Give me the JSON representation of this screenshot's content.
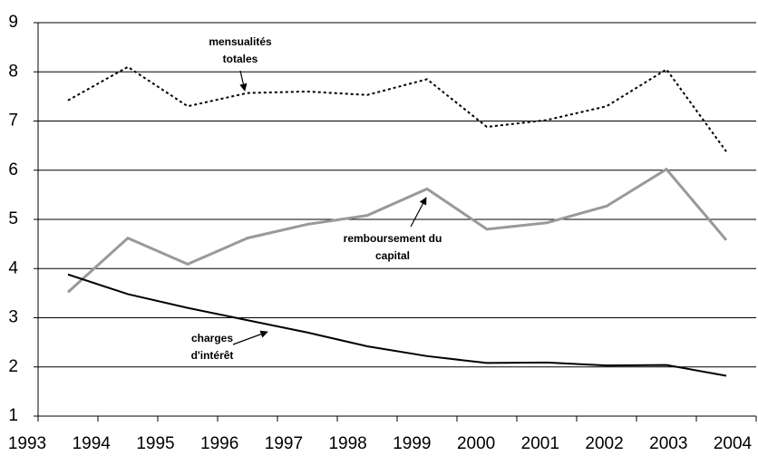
{
  "chart_data": {
    "type": "line",
    "categories": [
      "1993",
      "1994",
      "1995",
      "1996",
      "1997",
      "1998",
      "1999",
      "2000",
      "2001",
      "2002",
      "2003",
      "2004"
    ],
    "series": [
      {
        "color": "#000000",
        "dash": "dotted",
        "values": [
          7.42,
          8.1,
          7.3,
          7.57,
          7.6,
          7.53,
          7.85,
          6.88,
          7.02,
          7.3,
          8.05,
          6.38
        ]
      },
      {
        "color": "#999999",
        "dash": "solid",
        "values": [
          3.52,
          4.62,
          4.09,
          4.62,
          4.9,
          5.08,
          5.62,
          4.8,
          4.93,
          5.27,
          6.02,
          4.58
        ]
      },
      {
        "color": "#000000",
        "dash": "solid",
        "values": [
          3.88,
          3.48,
          3.2,
          2.95,
          2.7,
          2.42,
          2.22,
          2.08,
          2.09,
          2.03,
          2.04,
          1.82
        ]
      }
    ],
    "annotations": [
      {
        "lines": [
          "mensualités",
          "totales"
        ]
      },
      {
        "lines": [
          "remboursement du",
          "capital"
        ]
      },
      {
        "lines": [
          "charges",
          "d'intérêt"
        ]
      }
    ],
    "ylim": [
      1,
      9
    ],
    "yticks": [
      1,
      2,
      3,
      4,
      5,
      6,
      7,
      8,
      9
    ],
    "grid": true
  }
}
